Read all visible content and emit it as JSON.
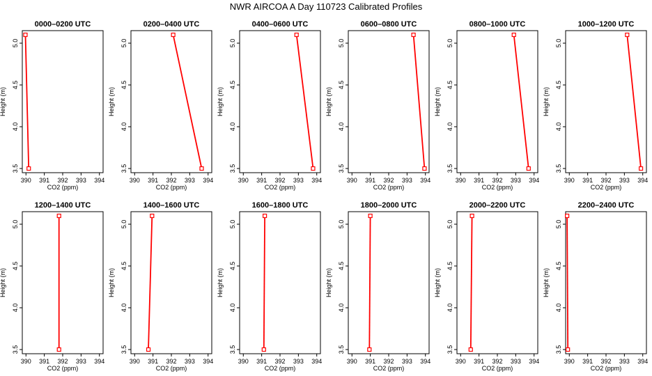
{
  "title": "NWR AIRCOA A  Day 110723  Calibrated Profiles",
  "chart_data": [
    {
      "type": "line",
      "title": "0000–0200 UTC",
      "xlabel": "CO2 (ppm)",
      "ylabel": "Height (m)",
      "xlim": [
        389.8,
        394.2
      ],
      "ylim": [
        3.45,
        5.15
      ],
      "xticks": [
        390,
        391,
        392,
        393,
        394
      ],
      "yticks": [
        3.5,
        4.0,
        4.5,
        5.0
      ],
      "series": [
        {
          "x": [
            390.15,
            389.97
          ],
          "y": [
            3.5,
            5.1
          ]
        }
      ]
    },
    {
      "type": "line",
      "title": "0200–0400 UTC",
      "xlabel": "CO2 (ppm)",
      "ylabel": "Height (m)",
      "xlim": [
        389.8,
        394.2
      ],
      "ylim": [
        3.45,
        5.15
      ],
      "xticks": [
        390,
        391,
        392,
        393,
        394
      ],
      "yticks": [
        3.5,
        4.0,
        4.5,
        5.0
      ],
      "series": [
        {
          "x": [
            393.65,
            392.1
          ],
          "y": [
            3.5,
            5.1
          ]
        }
      ]
    },
    {
      "type": "line",
      "title": "0400–0600 UTC",
      "xlabel": "CO2 (ppm)",
      "ylabel": "Height (m)",
      "xlim": [
        389.8,
        394.2
      ],
      "ylim": [
        3.45,
        5.15
      ],
      "xticks": [
        390,
        391,
        392,
        393,
        394
      ],
      "yticks": [
        3.5,
        4.0,
        4.5,
        5.0
      ],
      "series": [
        {
          "x": [
            393.8,
            392.9
          ],
          "y": [
            3.5,
            5.1
          ]
        }
      ]
    },
    {
      "type": "line",
      "title": "0600–0800 UTC",
      "xlabel": "CO2 (ppm)",
      "ylabel": "Height (m)",
      "xlim": [
        389.8,
        394.2
      ],
      "ylim": [
        3.45,
        5.15
      ],
      "xticks": [
        390,
        391,
        392,
        393,
        394
      ],
      "yticks": [
        3.5,
        4.0,
        4.5,
        5.0
      ],
      "series": [
        {
          "x": [
            393.95,
            393.35
          ],
          "y": [
            3.5,
            5.1
          ]
        }
      ]
    },
    {
      "type": "line",
      "title": "0800–1000 UTC",
      "xlabel": "CO2 (ppm)",
      "ylabel": "Height (m)",
      "xlim": [
        389.8,
        394.2
      ],
      "ylim": [
        3.45,
        5.15
      ],
      "xticks": [
        390,
        391,
        392,
        393,
        394
      ],
      "yticks": [
        3.5,
        4.0,
        4.5,
        5.0
      ],
      "series": [
        {
          "x": [
            393.7,
            392.9
          ],
          "y": [
            3.5,
            5.1
          ]
        }
      ]
    },
    {
      "type": "line",
      "title": "1000–1200 UTC",
      "xlabel": "CO2 (ppm)",
      "ylabel": "Height (m)",
      "xlim": [
        389.8,
        394.2
      ],
      "ylim": [
        3.45,
        5.15
      ],
      "xticks": [
        390,
        391,
        392,
        393,
        394
      ],
      "yticks": [
        3.5,
        4.0,
        4.5,
        5.0
      ],
      "series": [
        {
          "x": [
            393.9,
            393.15
          ],
          "y": [
            3.5,
            5.1
          ]
        }
      ]
    },
    {
      "type": "line",
      "title": "1200–1400 UTC",
      "xlabel": "CO2 (ppm)",
      "ylabel": "Height (m)",
      "xlim": [
        389.8,
        394.2
      ],
      "ylim": [
        3.45,
        5.15
      ],
      "xticks": [
        390,
        391,
        392,
        393,
        394
      ],
      "yticks": [
        3.5,
        4.0,
        4.5,
        5.0
      ],
      "series": [
        {
          "x": [
            391.8,
            391.8
          ],
          "y": [
            3.5,
            5.1
          ]
        }
      ]
    },
    {
      "type": "line",
      "title": "1400–1600 UTC",
      "xlabel": "CO2 (ppm)",
      "ylabel": "Height (m)",
      "xlim": [
        389.8,
        394.2
      ],
      "ylim": [
        3.45,
        5.15
      ],
      "xticks": [
        390,
        391,
        392,
        393,
        394
      ],
      "yticks": [
        3.5,
        4.0,
        4.5,
        5.0
      ],
      "series": [
        {
          "x": [
            390.75,
            390.95
          ],
          "y": [
            3.5,
            5.1
          ]
        }
      ]
    },
    {
      "type": "line",
      "title": "1600–1800 UTC",
      "xlabel": "CO2 (ppm)",
      "ylabel": "Height (m)",
      "xlim": [
        389.8,
        394.2
      ],
      "ylim": [
        3.45,
        5.15
      ],
      "xticks": [
        390,
        391,
        392,
        393,
        394
      ],
      "yticks": [
        3.5,
        4.0,
        4.5,
        5.0
      ],
      "series": [
        {
          "x": [
            391.12,
            391.17
          ],
          "y": [
            3.5,
            5.1
          ]
        }
      ]
    },
    {
      "type": "line",
      "title": "1800–2000 UTC",
      "xlabel": "CO2 (ppm)",
      "ylabel": "Height (m)",
      "xlim": [
        389.8,
        394.2
      ],
      "ylim": [
        3.45,
        5.15
      ],
      "xticks": [
        390,
        391,
        392,
        393,
        394
      ],
      "yticks": [
        3.5,
        4.0,
        4.5,
        5.0
      ],
      "series": [
        {
          "x": [
            390.95,
            391.0
          ],
          "y": [
            3.5,
            5.1
          ]
        }
      ]
    },
    {
      "type": "line",
      "title": "2000–2200 UTC",
      "xlabel": "CO2 (ppm)",
      "ylabel": "Height (m)",
      "xlim": [
        389.8,
        394.2
      ],
      "ylim": [
        3.45,
        5.15
      ],
      "xticks": [
        390,
        391,
        392,
        393,
        394
      ],
      "yticks": [
        3.5,
        4.0,
        4.5,
        5.0
      ],
      "series": [
        {
          "x": [
            390.55,
            390.62
          ],
          "y": [
            3.5,
            5.1
          ]
        }
      ]
    },
    {
      "type": "line",
      "title": "2200–2400 UTC",
      "xlabel": "CO2 (ppm)",
      "ylabel": "Height (m)",
      "xlim": [
        389.8,
        394.2
      ],
      "ylim": [
        3.45,
        5.15
      ],
      "xticks": [
        390,
        391,
        392,
        393,
        394
      ],
      "yticks": [
        3.5,
        4.0,
        4.5,
        5.0
      ],
      "series": [
        {
          "x": [
            389.92,
            389.88
          ],
          "y": [
            3.5,
            5.1
          ]
        }
      ]
    }
  ],
  "colors": {
    "series_line": "#ff0000",
    "series_marker": "#ff0000",
    "axis": "#000000"
  }
}
